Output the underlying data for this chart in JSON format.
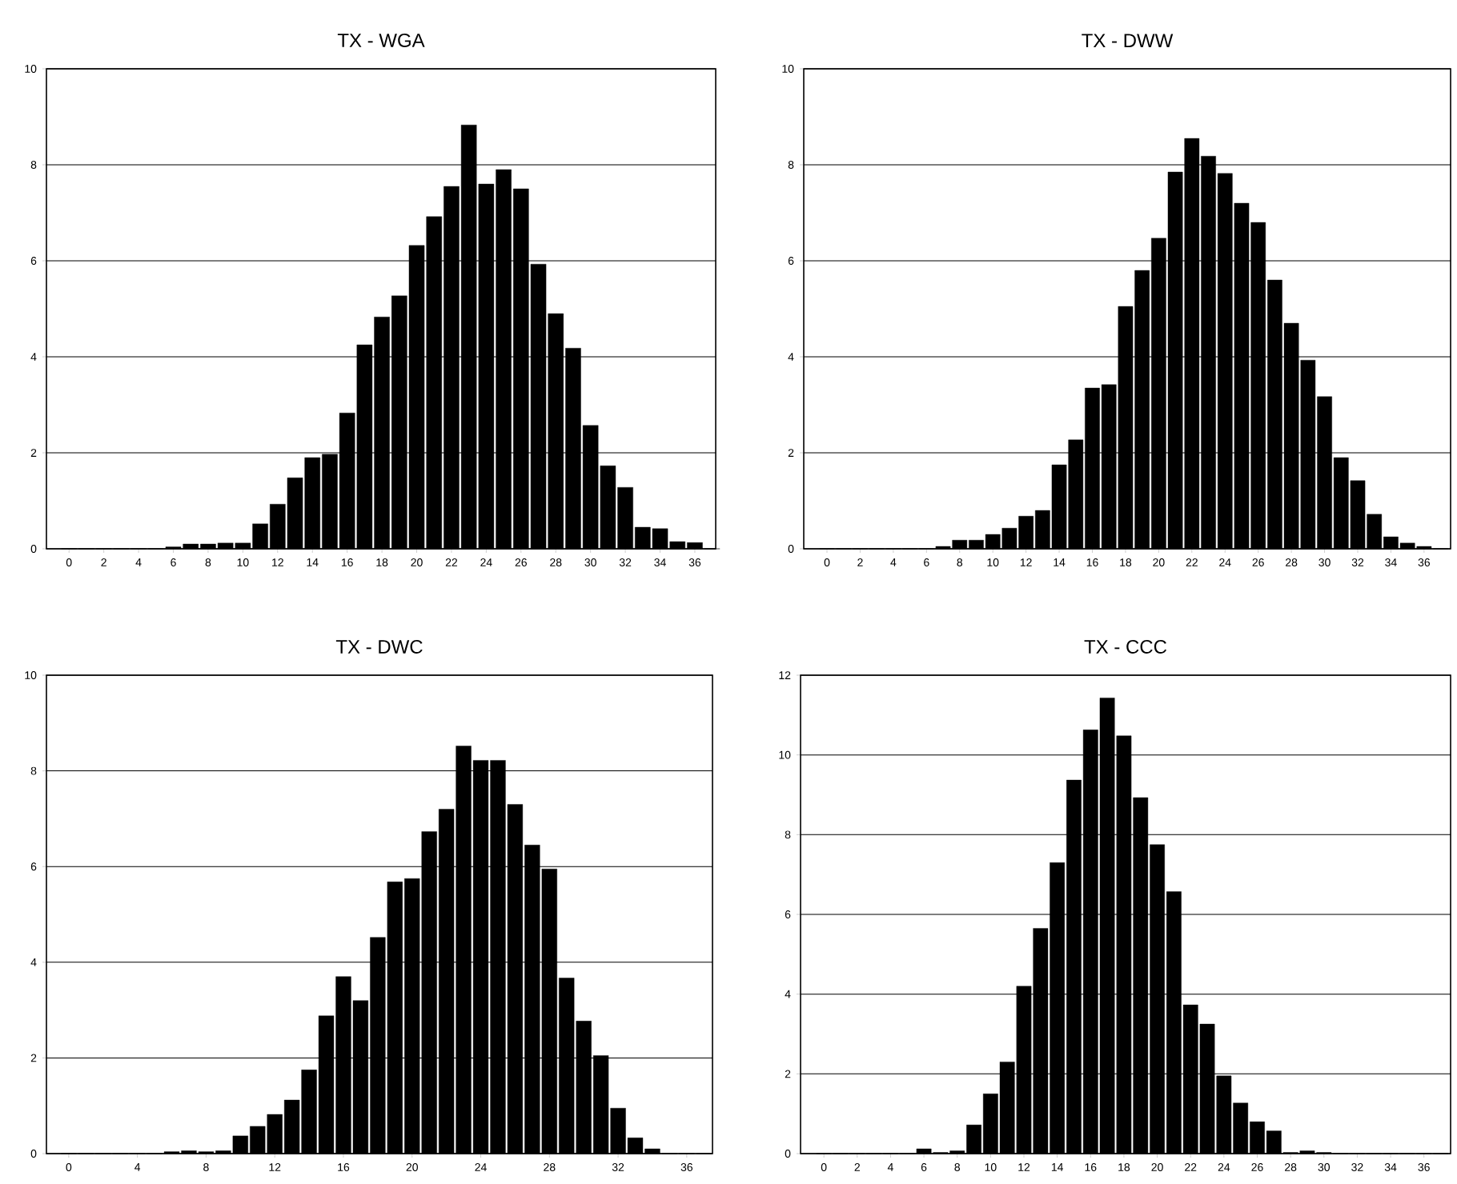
{
  "chart_data": [
    {
      "type": "bar",
      "title": "TX - WGA",
      "color": "#000000",
      "grid": "y",
      "xlim": [
        -1.3,
        37.2
      ],
      "ylim": [
        0,
        10
      ],
      "xticks": [
        0,
        2,
        4,
        6,
        8,
        10,
        12,
        14,
        16,
        18,
        20,
        22,
        24,
        26,
        28,
        30,
        32,
        34,
        36
      ],
      "yticks": [
        0,
        2,
        4,
        6,
        8,
        10
      ],
      "x": [
        0,
        1,
        2,
        3,
        4,
        5,
        6,
        7,
        8,
        9,
        10,
        11,
        12,
        13,
        14,
        15,
        16,
        17,
        18,
        19,
        20,
        21,
        22,
        23,
        24,
        25,
        26,
        27,
        28,
        29,
        30,
        31,
        32,
        33,
        34,
        35,
        36,
        37
      ],
      "values": [
        0,
        0,
        0,
        0,
        0,
        0,
        0.04,
        0.1,
        0.1,
        0.12,
        0.12,
        0.52,
        0.93,
        1.48,
        1.9,
        1.97,
        2.83,
        4.25,
        4.83,
        5.27,
        6.32,
        6.92,
        7.55,
        8.83,
        7.6,
        7.9,
        7.5,
        5.93,
        4.9,
        4.18,
        2.57,
        1.73,
        1.28,
        0.45,
        0.42,
        0.15,
        0.13,
        0
      ]
    },
    {
      "type": "bar",
      "title": "TX - DWW",
      "color": "#000000",
      "grid": "y",
      "xlim": [
        -1.4,
        37.6
      ],
      "ylim": [
        0,
        10
      ],
      "xticks": [
        0,
        2,
        4,
        6,
        8,
        10,
        12,
        14,
        16,
        18,
        20,
        22,
        24,
        26,
        28,
        30,
        32,
        34,
        36
      ],
      "yticks": [
        0,
        2,
        4,
        6,
        8,
        10
      ],
      "x": [
        0,
        1,
        2,
        3,
        4,
        5,
        6,
        7,
        8,
        9,
        10,
        11,
        12,
        13,
        14,
        15,
        16,
        17,
        18,
        19,
        20,
        21,
        22,
        23,
        24,
        25,
        26,
        27,
        28,
        29,
        30,
        31,
        32,
        33,
        34,
        35,
        36,
        37
      ],
      "values": [
        0,
        0,
        0,
        0,
        0,
        0,
        0,
        0.05,
        0.18,
        0.18,
        0.3,
        0.43,
        0.68,
        0.8,
        1.75,
        2.27,
        3.35,
        3.42,
        5.05,
        5.8,
        6.47,
        7.85,
        8.55,
        8.18,
        7.82,
        7.2,
        6.8,
        5.6,
        4.7,
        3.93,
        3.17,
        1.9,
        1.42,
        0.72,
        0.25,
        0.12,
        0.05,
        0
      ]
    },
    {
      "type": "bar",
      "title": "TX - DWC",
      "color": "#000000",
      "grid": "y",
      "xlim": [
        -1.3,
        37.5
      ],
      "ylim": [
        0,
        10
      ],
      "xticks": [
        0,
        4,
        8,
        12,
        16,
        20,
        24,
        28,
        32,
        36
      ],
      "yticks": [
        0,
        2,
        4,
        6,
        8,
        10
      ],
      "x": [
        0,
        1,
        2,
        3,
        4,
        5,
        6,
        7,
        8,
        9,
        10,
        11,
        12,
        13,
        14,
        15,
        16,
        17,
        18,
        19,
        20,
        21,
        22,
        23,
        24,
        25,
        26,
        27,
        28,
        29,
        30,
        31,
        32,
        33,
        34,
        35,
        36,
        37
      ],
      "values": [
        0,
        0,
        0,
        0,
        0,
        0,
        0.04,
        0.06,
        0.04,
        0.06,
        0.37,
        0.57,
        0.82,
        1.12,
        1.75,
        2.88,
        3.7,
        3.2,
        4.52,
        5.68,
        5.75,
        6.73,
        7.2,
        8.52,
        8.22,
        8.22,
        7.3,
        6.45,
        5.95,
        3.67,
        2.77,
        2.05,
        0.95,
        0.33,
        0.1,
        0,
        0,
        0
      ]
    },
    {
      "type": "bar",
      "title": "TX - CCC",
      "color": "#000000",
      "grid": "y",
      "xlim": [
        -1.4,
        37.6
      ],
      "ylim": [
        0,
        12
      ],
      "xticks": [
        0,
        2,
        4,
        6,
        8,
        10,
        12,
        14,
        16,
        18,
        20,
        22,
        24,
        26,
        28,
        30,
        32,
        34,
        36
      ],
      "yticks": [
        0,
        2,
        4,
        6,
        8,
        10,
        12
      ],
      "x": [
        0,
        1,
        2,
        3,
        4,
        5,
        6,
        7,
        8,
        9,
        10,
        11,
        12,
        13,
        14,
        15,
        16,
        17,
        18,
        19,
        20,
        21,
        22,
        23,
        24,
        25,
        26,
        27,
        28,
        29,
        30,
        31,
        32,
        33,
        34,
        35,
        36,
        37
      ],
      "values": [
        0,
        0,
        0,
        0,
        0,
        0,
        0.12,
        0.03,
        0.07,
        0.72,
        1.5,
        2.3,
        4.2,
        5.65,
        7.3,
        9.37,
        10.63,
        11.43,
        10.48,
        8.93,
        7.75,
        6.57,
        3.73,
        3.25,
        1.95,
        1.27,
        0.8,
        0.57,
        0.03,
        0.07,
        0.03,
        0,
        0,
        0,
        0,
        0,
        0,
        0
      ]
    }
  ]
}
